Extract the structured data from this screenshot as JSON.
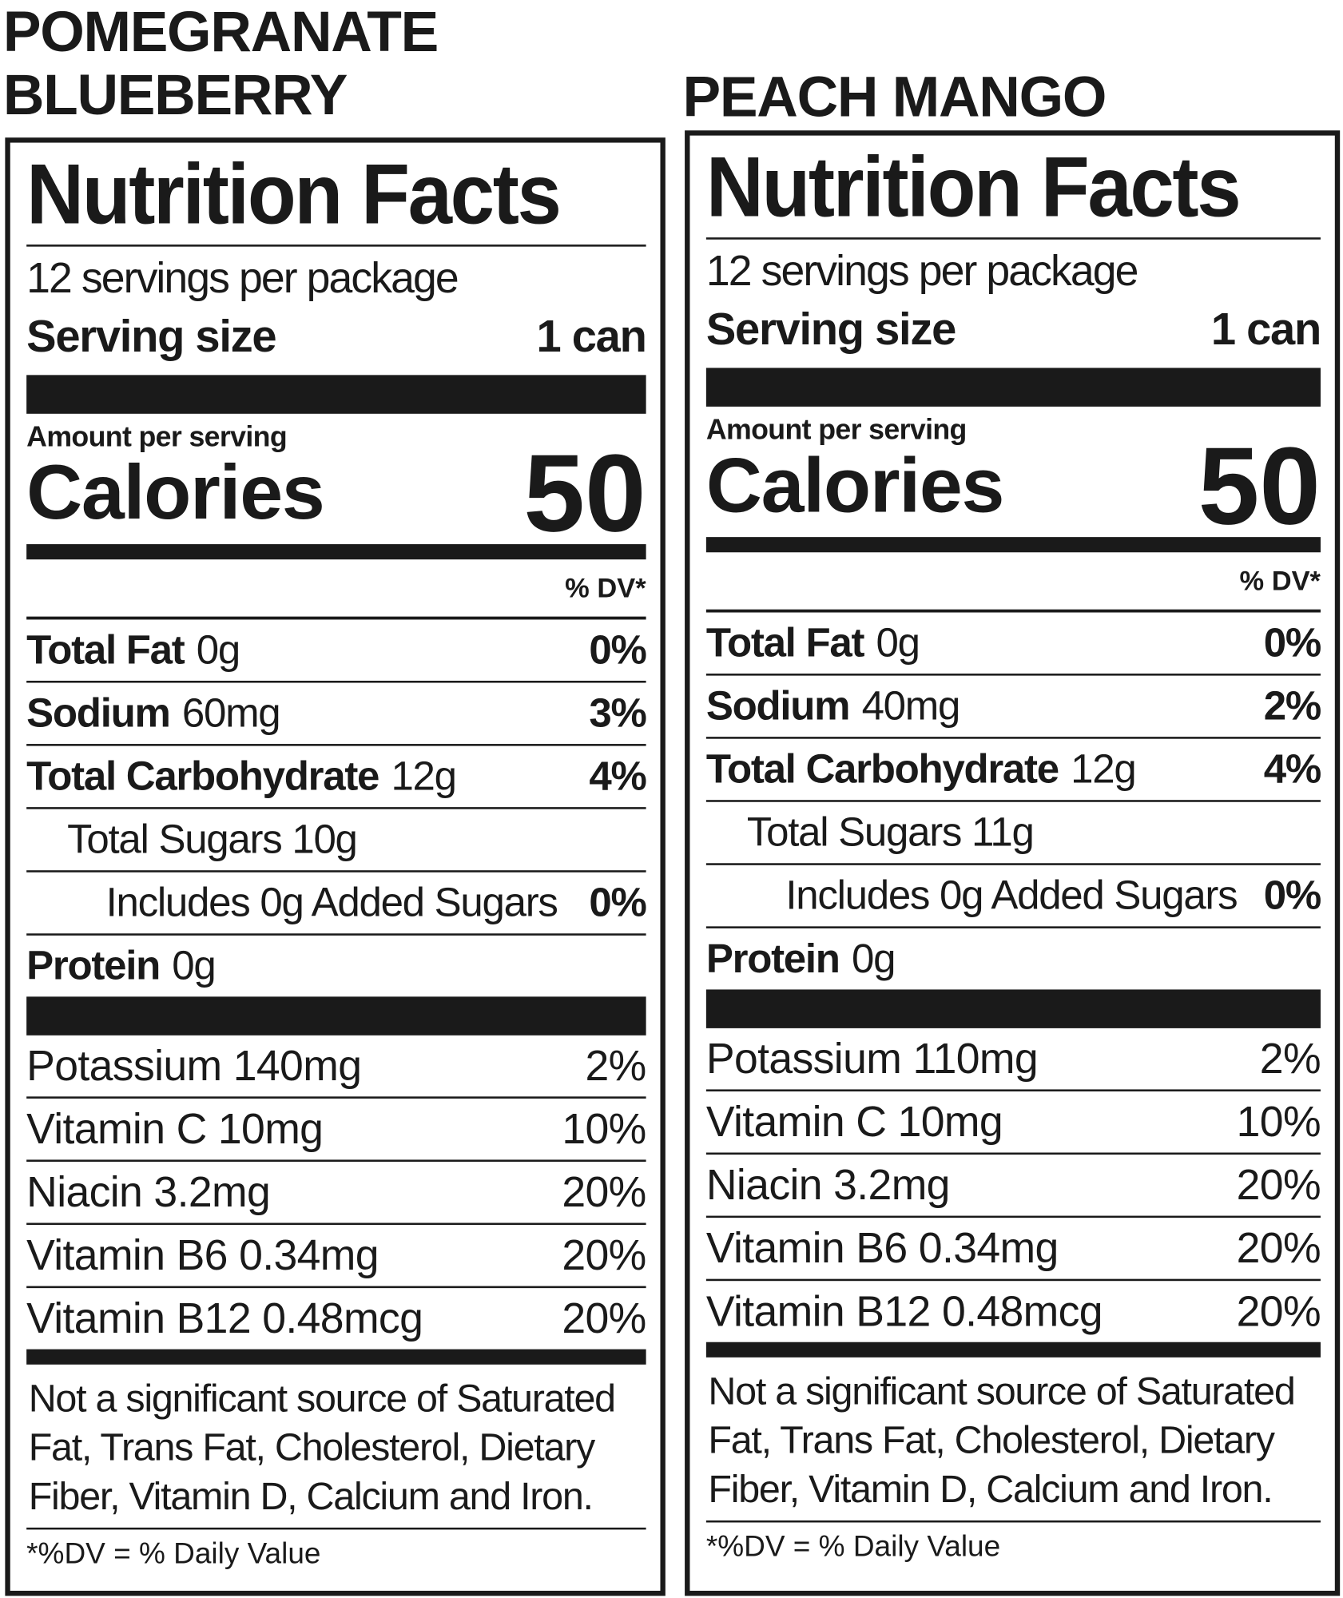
{
  "panels": [
    {
      "product": [
        "POMEGRANATE",
        "BLUEBERRY"
      ],
      "title": "Nutrition Facts",
      "servings": "12 servings per package",
      "serving_size_label": "Serving size",
      "serving_size": "1 can",
      "amount_label": "Amount per serving",
      "calories_label": "Calories",
      "calories": "50",
      "dv_header": "% DV*",
      "macros": [
        {
          "name": "Total Fat",
          "amount": "0g",
          "dv": "0%"
        },
        {
          "name": "Sodium",
          "amount": "60mg",
          "dv": "3%"
        },
        {
          "name": "Total Carbohydrate",
          "amount": "12g",
          "dv": "4%"
        }
      ],
      "sugars": "Total Sugars 10g",
      "added_sugars": {
        "text": "Includes 0g Added Sugars",
        "dv": "0%"
      },
      "protein": {
        "name": "Protein",
        "amount": "0g"
      },
      "vitamins": [
        {
          "name": "Potassium 140mg",
          "dv": "2%"
        },
        {
          "name": "Vitamin C 10mg",
          "dv": "10%"
        },
        {
          "name": "Niacin 3.2mg",
          "dv": "20%"
        },
        {
          "name": "Vitamin B6 0.34mg",
          "dv": "20%"
        },
        {
          "name": "Vitamin B12 0.48mcg",
          "dv": "20%"
        }
      ],
      "footnote": "Not a significant source of Saturated Fat, Trans Fat, Cholesterol, Dietary Fiber, Vitamin D, Calcium and Iron.",
      "dv_note": "*%DV = % Daily Value"
    },
    {
      "product": [
        "PEACH MANGO"
      ],
      "title": "Nutrition Facts",
      "servings": "12 servings per package",
      "serving_size_label": "Serving size",
      "serving_size": "1 can",
      "amount_label": "Amount per serving",
      "calories_label": "Calories",
      "calories": "50",
      "dv_header": "% DV*",
      "macros": [
        {
          "name": "Total Fat",
          "amount": "0g",
          "dv": "0%"
        },
        {
          "name": "Sodium",
          "amount": "40mg",
          "dv": "2%"
        },
        {
          "name": "Total Carbohydrate",
          "amount": "12g",
          "dv": "4%"
        }
      ],
      "sugars": "Total Sugars 11g",
      "added_sugars": {
        "text": "Includes 0g Added Sugars",
        "dv": "0%"
      },
      "protein": {
        "name": "Protein",
        "amount": "0g"
      },
      "vitamins": [
        {
          "name": "Potassium 110mg",
          "dv": "2%"
        },
        {
          "name": "Vitamin C 10mg",
          "dv": "10%"
        },
        {
          "name": "Niacin 3.2mg",
          "dv": "20%"
        },
        {
          "name": "Vitamin B6 0.34mg",
          "dv": "20%"
        },
        {
          "name": "Vitamin B12 0.48mcg",
          "dv": "20%"
        }
      ],
      "footnote": "Not a significant source of Saturated Fat, Trans Fat, Cholesterol, Dietary Fiber, Vitamin D, Calcium and Iron.",
      "dv_note": "*%DV = % Daily Value"
    }
  ]
}
